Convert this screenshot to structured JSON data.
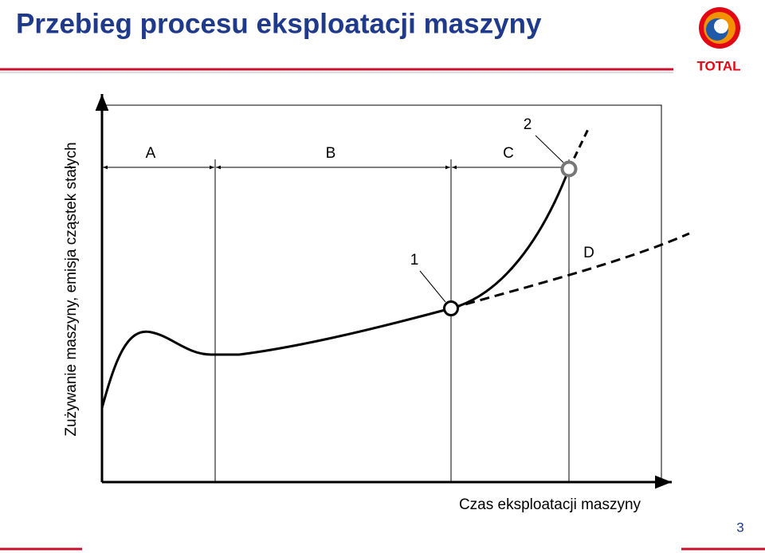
{
  "header": {
    "title": "Przebieg procesu eksploatacji maszyny",
    "logo_text": "TOTAL"
  },
  "diagram": {
    "y_axis_label": "Zużywanie maszyny, emisja cząstek stałych",
    "x_axis_label": "Czas eksploatacji maszyny",
    "phases": [
      "A",
      "B",
      "C"
    ],
    "curve_label": "D",
    "points": [
      "1",
      "2"
    ]
  },
  "footer": {
    "page_number": "3"
  }
}
